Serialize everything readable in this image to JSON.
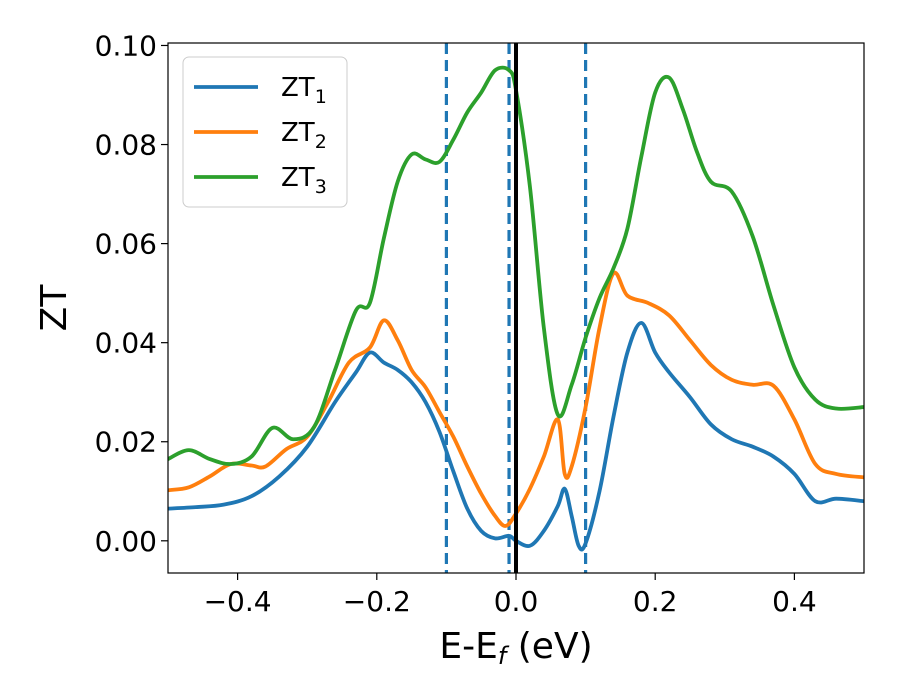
{
  "chart_data": {
    "type": "line",
    "title": "",
    "xlabel": "E-E",
    "xlabel_subscript": "f",
    "xlabel_unit": " (eV)",
    "ylabel": "ZT",
    "xlim": [
      -0.5,
      0.5
    ],
    "ylim": [
      -0.0065,
      0.1005
    ],
    "xticks": [
      -0.4,
      -0.2,
      0.0,
      0.2,
      0.4
    ],
    "xtick_labels": [
      "−0.4",
      "−0.2",
      "0.0",
      "0.2",
      "0.4"
    ],
    "yticks": [
      0.0,
      0.02,
      0.04,
      0.06,
      0.08,
      0.1
    ],
    "ytick_labels": [
      "0.00",
      "0.02",
      "0.04",
      "0.06",
      "0.08",
      "0.10"
    ],
    "grid": false,
    "legend_position": "top-left",
    "vertical_lines": [
      {
        "x": -0.1,
        "style": "dashed",
        "color": "#1f77b4"
      },
      {
        "x": -0.01,
        "style": "dashed",
        "color": "#1f77b4"
      },
      {
        "x": 0.1,
        "style": "dashed",
        "color": "#1f77b4"
      },
      {
        "x": 0.0,
        "style": "solid",
        "color": "#000000"
      }
    ],
    "series": [
      {
        "name": "ZT",
        "subscript": "1",
        "color": "#1f77b4",
        "x": [
          -0.5,
          -0.46,
          -0.42,
          -0.38,
          -0.34,
          -0.3,
          -0.26,
          -0.23,
          -0.21,
          -0.19,
          -0.17,
          -0.15,
          -0.13,
          -0.11,
          -0.09,
          -0.07,
          -0.05,
          -0.03,
          -0.01,
          0.0,
          0.02,
          0.04,
          0.06,
          0.07,
          0.08,
          0.09,
          0.1,
          0.12,
          0.14,
          0.16,
          0.18,
          0.2,
          0.22,
          0.25,
          0.28,
          0.31,
          0.34,
          0.37,
          0.4,
          0.43,
          0.46,
          0.5
        ],
        "y": [
          0.0065,
          0.0068,
          0.0073,
          0.009,
          0.013,
          0.019,
          0.028,
          0.034,
          0.038,
          0.036,
          0.0345,
          0.032,
          0.028,
          0.022,
          0.014,
          0.0065,
          0.002,
          0.0005,
          0.001,
          0.0,
          -0.001,
          0.002,
          0.007,
          0.0105,
          0.005,
          -0.001,
          -0.0005,
          0.01,
          0.025,
          0.038,
          0.044,
          0.038,
          0.034,
          0.029,
          0.0235,
          0.0205,
          0.019,
          0.017,
          0.0135,
          0.008,
          0.0085,
          0.008
        ]
      },
      {
        "name": "ZT",
        "subscript": "2",
        "color": "#ff7f0e",
        "x": [
          -0.5,
          -0.47,
          -0.44,
          -0.41,
          -0.38,
          -0.36,
          -0.33,
          -0.3,
          -0.27,
          -0.24,
          -0.21,
          -0.19,
          -0.17,
          -0.15,
          -0.13,
          -0.11,
          -0.09,
          -0.07,
          -0.05,
          -0.03,
          -0.015,
          0.0,
          0.02,
          0.04,
          0.06,
          0.07,
          0.08,
          0.1,
          0.12,
          0.14,
          0.16,
          0.19,
          0.22,
          0.25,
          0.28,
          0.31,
          0.34,
          0.37,
          0.4,
          0.43,
          0.46,
          0.5
        ],
        "y": [
          0.0102,
          0.0108,
          0.013,
          0.0155,
          0.0152,
          0.015,
          0.0185,
          0.021,
          0.028,
          0.036,
          0.039,
          0.0445,
          0.0405,
          0.0345,
          0.031,
          0.026,
          0.021,
          0.015,
          0.0095,
          0.005,
          0.003,
          0.0055,
          0.0105,
          0.017,
          0.0245,
          0.0135,
          0.015,
          0.027,
          0.043,
          0.054,
          0.0495,
          0.048,
          0.0455,
          0.0405,
          0.0355,
          0.0325,
          0.0315,
          0.0313,
          0.0245,
          0.0155,
          0.0135,
          0.0128
        ]
      },
      {
        "name": "ZT",
        "subscript": "3",
        "color": "#2ca02c",
        "x": [
          -0.5,
          -0.47,
          -0.44,
          -0.41,
          -0.38,
          -0.35,
          -0.32,
          -0.29,
          -0.26,
          -0.23,
          -0.21,
          -0.19,
          -0.17,
          -0.15,
          -0.13,
          -0.11,
          -0.09,
          -0.07,
          -0.05,
          -0.03,
          -0.01,
          0.0,
          0.02,
          0.04,
          0.06,
          0.08,
          0.1,
          0.12,
          0.14,
          0.16,
          0.18,
          0.2,
          0.22,
          0.24,
          0.26,
          0.28,
          0.31,
          0.34,
          0.37,
          0.4,
          0.43,
          0.46,
          0.5
        ],
        "y": [
          0.0165,
          0.0183,
          0.0165,
          0.0155,
          0.017,
          0.0228,
          0.0205,
          0.023,
          0.0345,
          0.0465,
          0.048,
          0.061,
          0.0725,
          0.078,
          0.077,
          0.0765,
          0.081,
          0.0865,
          0.0905,
          0.095,
          0.095,
          0.091,
          0.0715,
          0.043,
          0.0255,
          0.0315,
          0.041,
          0.049,
          0.055,
          0.063,
          0.0775,
          0.0905,
          0.0935,
          0.087,
          0.0785,
          0.0725,
          0.0705,
          0.0615,
          0.0475,
          0.035,
          0.0285,
          0.0267,
          0.027
        ]
      }
    ]
  }
}
